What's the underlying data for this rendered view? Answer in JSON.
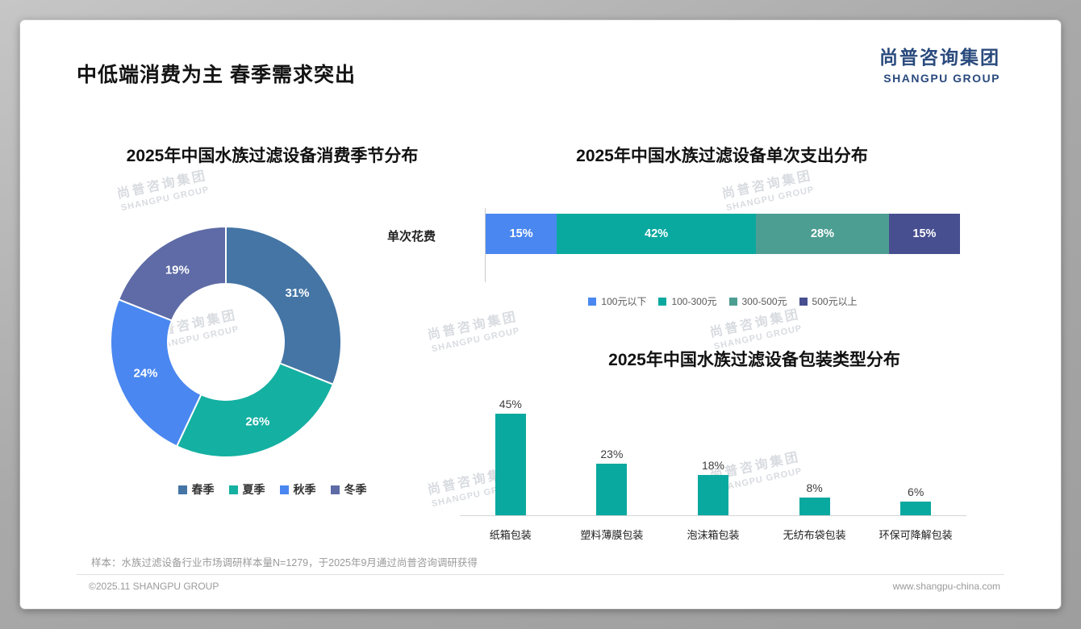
{
  "page": {
    "title": "中低端消费为主 春季需求突出",
    "footnote": "样本：水族过滤设备行业市场调研样本量N=1279，于2025年9月通过尚普咨询调研获得",
    "footer_left": "©2025.11 SHANGPU GROUP",
    "footer_right": "www.shangpu-china.com"
  },
  "logo": {
    "cn": "尚普咨询集团",
    "en": "SHANGPU GROUP"
  },
  "watermark": {
    "cn": "尚普咨询集团",
    "en": "SHANGPU GROUP"
  },
  "colors": {
    "brand_navy": "#2a4a7d",
    "teal": "#0aa9a0",
    "bright_blue": "#4a87f0",
    "steel_blue": "#4475a5",
    "slate_blue": "#5e6ba6",
    "sea_green": "#4d9e92",
    "dark_navy": "#474f90"
  },
  "chart_data": [
    {
      "id": "season-donut",
      "type": "pie",
      "donut": true,
      "title": "2025年中国水族过滤设备消费季节分布",
      "categories": [
        "春季",
        "夏季",
        "秋季",
        "冬季"
      ],
      "values": [
        31,
        26,
        24,
        19
      ],
      "unit": "%",
      "colors": [
        "#4475a5",
        "#14b0a2",
        "#4a87f0",
        "#5e6ba6"
      ],
      "legend_position": "bottom"
    },
    {
      "id": "single-spend-stacked",
      "type": "bar",
      "subtype": "horizontal-stacked",
      "title": "2025年中国水族过滤设备单次支出分布",
      "row_label": "单次花费",
      "categories": [
        "100元以下",
        "100-300元",
        "300-500元",
        "500元以上"
      ],
      "values": [
        15,
        42,
        28,
        15
      ],
      "unit": "%",
      "colors": [
        "#4a87f0",
        "#0aa9a0",
        "#4d9e92",
        "#474f90"
      ],
      "legend_position": "bottom",
      "xlim": [
        0,
        100
      ]
    },
    {
      "id": "packaging-bars",
      "type": "bar",
      "title": "2025年中国水族过滤设备包装类型分布",
      "categories": [
        "纸箱包装",
        "塑料薄膜包装",
        "泡沫箱包装",
        "无纺布袋包装",
        "环保可降解包装"
      ],
      "values": [
        45,
        23,
        18,
        8,
        6
      ],
      "unit": "%",
      "color": "#0aa9a0",
      "ylim": [
        0,
        50
      ],
      "grid": false
    }
  ]
}
